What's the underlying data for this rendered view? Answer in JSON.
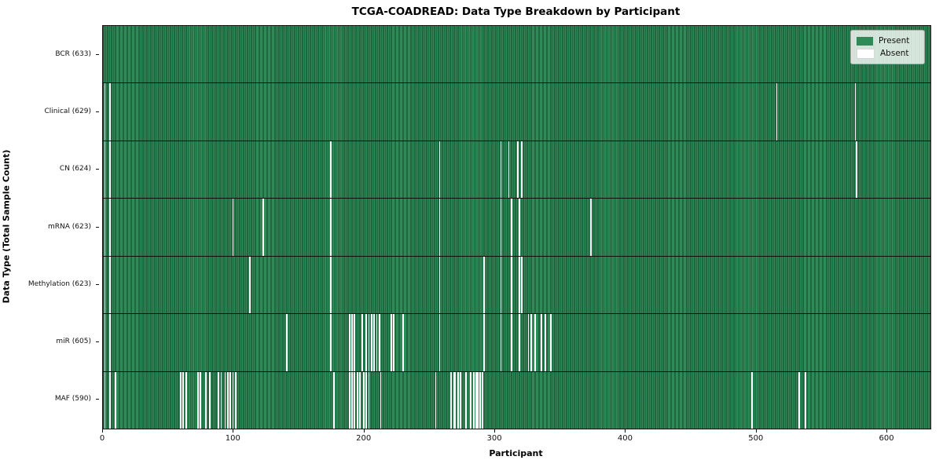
{
  "title": "TCGA-COADREAD: Data Type Breakdown by Participant",
  "legend": {
    "present_label": "Present",
    "absent_label": "Absent"
  },
  "colors": {
    "present": "#2e8b57",
    "absent": "#ffffff",
    "bar_edge": "#0a2616",
    "background": "#ffffff"
  },
  "chart_data": {
    "type": "heatmap",
    "title": "TCGA-COADREAD: Data Type Breakdown by Participant",
    "xlabel": "Participant",
    "ylabel": "Data Type (Total Sample Count)",
    "x_min": 0,
    "x_max": 633,
    "x_ticks": [
      0,
      100,
      200,
      300,
      400,
      500,
      600
    ],
    "n_participants": 633,
    "legend_entries": [
      "Present",
      "Absent"
    ],
    "legend_position": "upper right",
    "grid": false,
    "rows": [
      {
        "name": "BCR",
        "label": "BCR (633)",
        "present_count": 633,
        "absent_count": 0,
        "absent_participants": []
      },
      {
        "name": "Clinical",
        "label": "Clinical (629)",
        "present_count": 629,
        "absent_count": 4,
        "absent_participants": [
          1,
          5,
          515,
          575
        ]
      },
      {
        "name": "CN",
        "label": "CN (624)",
        "present_count": 624,
        "absent_count": 9,
        "absent_participants": [
          1,
          5,
          174,
          257,
          304,
          310,
          317,
          320,
          576
        ]
      },
      {
        "name": "mRNA",
        "label": "mRNA (623)",
        "present_count": 623,
        "absent_count": 10,
        "absent_participants": [
          1,
          5,
          99,
          122,
          174,
          257,
          304,
          312,
          318,
          373
        ]
      },
      {
        "name": "Methylation",
        "label": "Methylation (623)",
        "present_count": 623,
        "absent_count": 10,
        "absent_participants": [
          1,
          5,
          112,
          174,
          257,
          291,
          304,
          312,
          318,
          320
        ]
      },
      {
        "name": "miR",
        "label": "miR (605)",
        "present_count": 605,
        "absent_count": 28,
        "absent_participants": [
          1,
          5,
          140,
          174,
          188,
          190,
          192,
          198,
          201,
          203,
          205,
          207,
          209,
          211,
          220,
          222,
          229,
          257,
          291,
          304,
          312,
          318,
          325,
          327,
          330,
          335,
          338,
          342
        ]
      },
      {
        "name": "MAF",
        "label": "MAF (590)",
        "present_count": 590,
        "absent_count": 43,
        "absent_participants": [
          1,
          5,
          9,
          59,
          61,
          63,
          72,
          74,
          78,
          81,
          88,
          90,
          93,
          95,
          97,
          99,
          101,
          176,
          188,
          190,
          192,
          194,
          196,
          199,
          201,
          203,
          212,
          254,
          266,
          268,
          269,
          271,
          273,
          277,
          281,
          283,
          285,
          286,
          288,
          290,
          496,
          532,
          537
        ]
      }
    ]
  }
}
